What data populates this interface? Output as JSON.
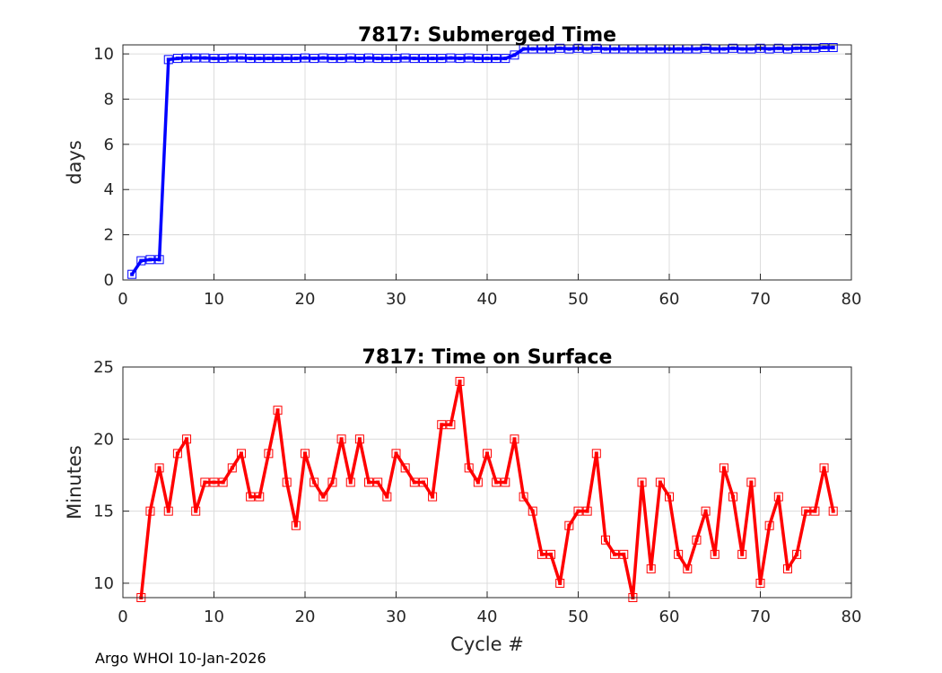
{
  "chart_data": [
    {
      "type": "line",
      "title": "7817: Submerged Time",
      "xlabel": "",
      "ylabel": "days",
      "xlim": [
        0,
        80
      ],
      "ylim": [
        0,
        10.4
      ],
      "xticks": [
        0,
        10,
        20,
        30,
        40,
        50,
        60,
        70,
        80
      ],
      "yticks": [
        0,
        2,
        4,
        6,
        8,
        10
      ],
      "grid": true,
      "color": "#0000ff",
      "marker": "square",
      "series": [
        {
          "x": [
            1,
            2,
            3,
            4,
            5,
            6,
            7,
            8,
            9,
            10,
            11,
            12,
            13,
            14,
            15,
            16,
            17,
            18,
            19,
            20,
            21,
            22,
            23,
            24,
            25,
            26,
            27,
            28,
            29,
            30,
            31,
            32,
            33,
            34,
            35,
            36,
            37,
            38,
            39,
            40,
            41,
            42,
            43,
            44,
            45,
            46,
            47,
            48,
            49,
            50,
            51,
            52,
            53,
            54,
            55,
            56,
            57,
            58,
            59,
            60,
            61,
            62,
            63,
            64,
            65,
            66,
            67,
            68,
            69,
            70,
            71,
            72,
            73,
            74,
            75,
            76,
            77,
            78
          ],
          "values": [
            0.25,
            0.85,
            0.9,
            0.9,
            9.75,
            9.8,
            9.82,
            9.82,
            9.82,
            9.8,
            9.8,
            9.82,
            9.82,
            9.8,
            9.8,
            9.8,
            9.8,
            9.8,
            9.8,
            9.82,
            9.8,
            9.82,
            9.8,
            9.8,
            9.82,
            9.8,
            9.82,
            9.8,
            9.8,
            9.8,
            9.82,
            9.8,
            9.8,
            9.8,
            9.8,
            9.82,
            9.8,
            9.82,
            9.8,
            9.8,
            9.8,
            9.8,
            9.95,
            10.22,
            10.22,
            10.22,
            10.22,
            10.25,
            10.22,
            10.25,
            10.22,
            10.25,
            10.22,
            10.22,
            10.22,
            10.22,
            10.22,
            10.22,
            10.22,
            10.22,
            10.22,
            10.22,
            10.22,
            10.25,
            10.22,
            10.22,
            10.25,
            10.22,
            10.22,
            10.25,
            10.22,
            10.25,
            10.22,
            10.25,
            10.25,
            10.25,
            10.28,
            10.28
          ]
        }
      ]
    },
    {
      "type": "line",
      "title": "7817: Time on Surface",
      "xlabel": "Cycle #",
      "ylabel": "Minutes",
      "xlim": [
        0,
        80
      ],
      "ylim": [
        9,
        25
      ],
      "xticks": [
        0,
        10,
        20,
        30,
        40,
        50,
        60,
        70,
        80
      ],
      "yticks": [
        10,
        15,
        20,
        25
      ],
      "grid": true,
      "color": "#ff0000",
      "marker": "square",
      "series": [
        {
          "x": [
            2,
            3,
            4,
            5,
            6,
            7,
            8,
            9,
            10,
            11,
            12,
            13,
            14,
            15,
            16,
            17,
            18,
            19,
            20,
            21,
            22,
            23,
            24,
            25,
            26,
            27,
            28,
            29,
            30,
            31,
            32,
            33,
            34,
            35,
            36,
            37,
            38,
            39,
            40,
            41,
            42,
            43,
            44,
            45,
            46,
            47,
            48,
            49,
            50,
            51,
            52,
            53,
            54,
            55,
            56,
            57,
            58,
            59,
            60,
            61,
            62,
            63,
            64,
            65,
            66,
            67,
            68,
            69,
            70,
            71,
            72,
            73,
            74,
            75,
            76,
            77,
            78
          ],
          "values": [
            9,
            15,
            18,
            15,
            19,
            20,
            15,
            17,
            17,
            17,
            18,
            19,
            16,
            16,
            19,
            22,
            17,
            14,
            19,
            17,
            16,
            17,
            20,
            17,
            20,
            17,
            17,
            16,
            19,
            18,
            17,
            17,
            16,
            21,
            21,
            24,
            18,
            17,
            19,
            17,
            17,
            20,
            16,
            15,
            12,
            12,
            10,
            14,
            15,
            15,
            19,
            13,
            12,
            12,
            9,
            17,
            11,
            17,
            16,
            12,
            11,
            13,
            15,
            12,
            18,
            16,
            12,
            17,
            10,
            14,
            16,
            11,
            12,
            15,
            15,
            18,
            15
          ]
        }
      ]
    }
  ],
  "footer": "Argo WHOI 10-Jan-2026"
}
